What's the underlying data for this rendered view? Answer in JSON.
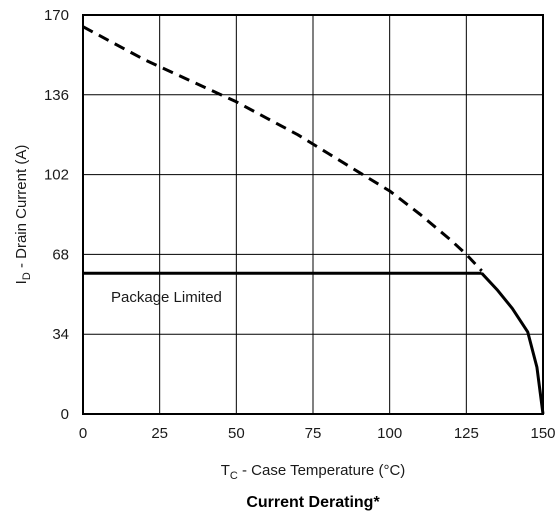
{
  "chart_data": {
    "type": "line",
    "title": "Current Derating*",
    "xlabel": {
      "main": "T",
      "sub": "C",
      "rest": " - Case Temperature (°C)"
    },
    "ylabel": {
      "main": "I",
      "sub": "D",
      "rest": " - Drain Current (A)"
    },
    "xlim": [
      0,
      150
    ],
    "ylim": [
      0,
      170
    ],
    "xticks": [
      0,
      25,
      50,
      75,
      100,
      125,
      150
    ],
    "yticks": [
      0,
      34,
      68,
      102,
      136,
      170
    ],
    "grid": true,
    "annotations": [
      {
        "text": "Package Limited"
      }
    ],
    "series": [
      {
        "style": "dashed",
        "color": "#000000",
        "points": [
          [
            0,
            165
          ],
          [
            10,
            158
          ],
          [
            20,
            151
          ],
          [
            30,
            145
          ],
          [
            40,
            139
          ],
          [
            50,
            133
          ],
          [
            60,
            126
          ],
          [
            70,
            119
          ],
          [
            80,
            111
          ],
          [
            90,
            103
          ],
          [
            100,
            95
          ],
          [
            110,
            85
          ],
          [
            120,
            74
          ],
          [
            125,
            68
          ],
          [
            130,
            61
          ]
        ]
      },
      {
        "style": "solid",
        "color": "#000000",
        "points": [
          [
            0,
            60
          ],
          [
            130,
            60
          ]
        ]
      },
      {
        "style": "solid",
        "color": "#000000",
        "points": [
          [
            130,
            60
          ],
          [
            135,
            53
          ],
          [
            140,
            45
          ],
          [
            145,
            35
          ],
          [
            148,
            20
          ],
          [
            150,
            0
          ]
        ]
      }
    ]
  }
}
